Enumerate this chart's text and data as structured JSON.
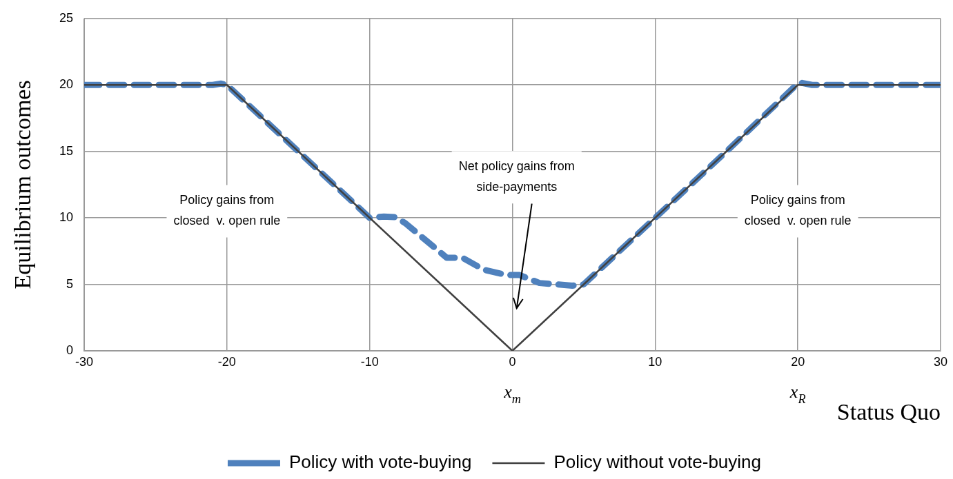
{
  "chart_data": {
    "type": "line",
    "xlabel": "Status Quo",
    "ylabel": "Equilibrium outcomes",
    "xlim": [
      -30,
      30
    ],
    "xticks": [
      -30,
      -20,
      -10,
      0,
      10,
      20,
      30
    ],
    "ylim": [
      0,
      25
    ],
    "yticks": [
      0,
      5,
      10,
      15,
      20,
      25
    ],
    "grid": true,
    "legend": "bottom",
    "marker": "none",
    "series": [
      {
        "name": "Policy with vote-buying",
        "color": "#4f81bd",
        "line_style": "dashed",
        "x": [
          -30,
          -21,
          -20.4,
          -20,
          -10,
          -9,
          -8.2,
          -7.5,
          -4.6,
          -3.5,
          -2,
          -0.4,
          0.5,
          1.9,
          4.2,
          5,
          10,
          15,
          19.9,
          20.3,
          21,
          30
        ],
        "values": [
          20,
          20,
          20.1,
          20,
          10,
          10.1,
          10.05,
          9.6,
          7,
          7,
          6.1,
          5.7,
          5.7,
          5.1,
          4.9,
          5,
          10,
          15,
          20,
          20.15,
          20,
          20
        ]
      },
      {
        "name": "Policy without vote-buying",
        "color": "#404040",
        "line_style": "solid",
        "x": [
          -30,
          -20.5,
          -20,
          -1,
          0,
          1,
          20,
          20.5,
          30
        ],
        "values": [
          20,
          20,
          20,
          1,
          0,
          1,
          20,
          20,
          20
        ]
      }
    ],
    "annotations": [
      "Policy gains from\nclosed  v. open rule",
      "Net policy gains from\nside-payments",
      "Policy gains from\nclosed  v. open rule",
      "x$_{m}$",
      "x$_{R}$"
    ]
  }
}
